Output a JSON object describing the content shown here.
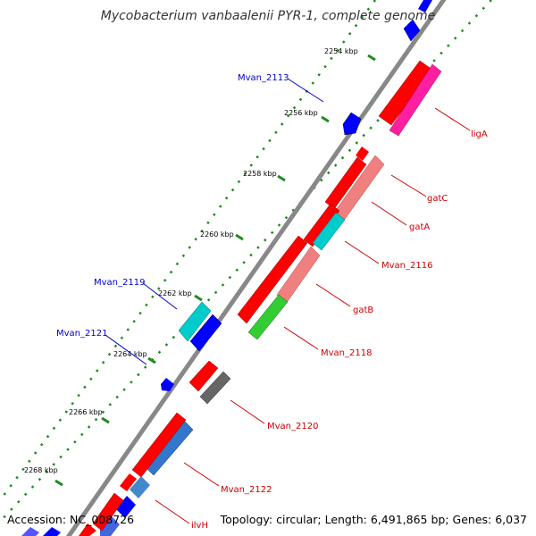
{
  "title": "Mycobacterium vanbaalenii PYR-1, complete genome",
  "footer": {
    "accession": "Accession: NC_008726",
    "summary": "Topology: circular; Length: 6,491,865 bp; Genes: 6,037"
  },
  "kbp_labels": [
    "2254 kbp",
    "2256 kbp",
    "2258 kbp",
    "2260 kbp",
    "2262 kbp",
    "2264 kbp",
    "2266 kbp",
    "2268 kbp"
  ],
  "gene_labels_reverse": [
    "Mvan_2113",
    "Mvan_2119",
    "Mvan_2121"
  ],
  "gene_labels_forward": [
    "ligA",
    "gatC",
    "gatA",
    "Mvan_2116",
    "gatB",
    "Mvan_2118",
    "Mvan_2120",
    "Mvan_2122",
    "ilvH"
  ],
  "colors": {
    "cds_forward": "#ff0000",
    "cds_reverse": "#0000ff",
    "label_forward": "#cc0000",
    "label_reverse": "#0000cc",
    "backbone": "#888888",
    "tick_dots": "#228b22"
  }
}
